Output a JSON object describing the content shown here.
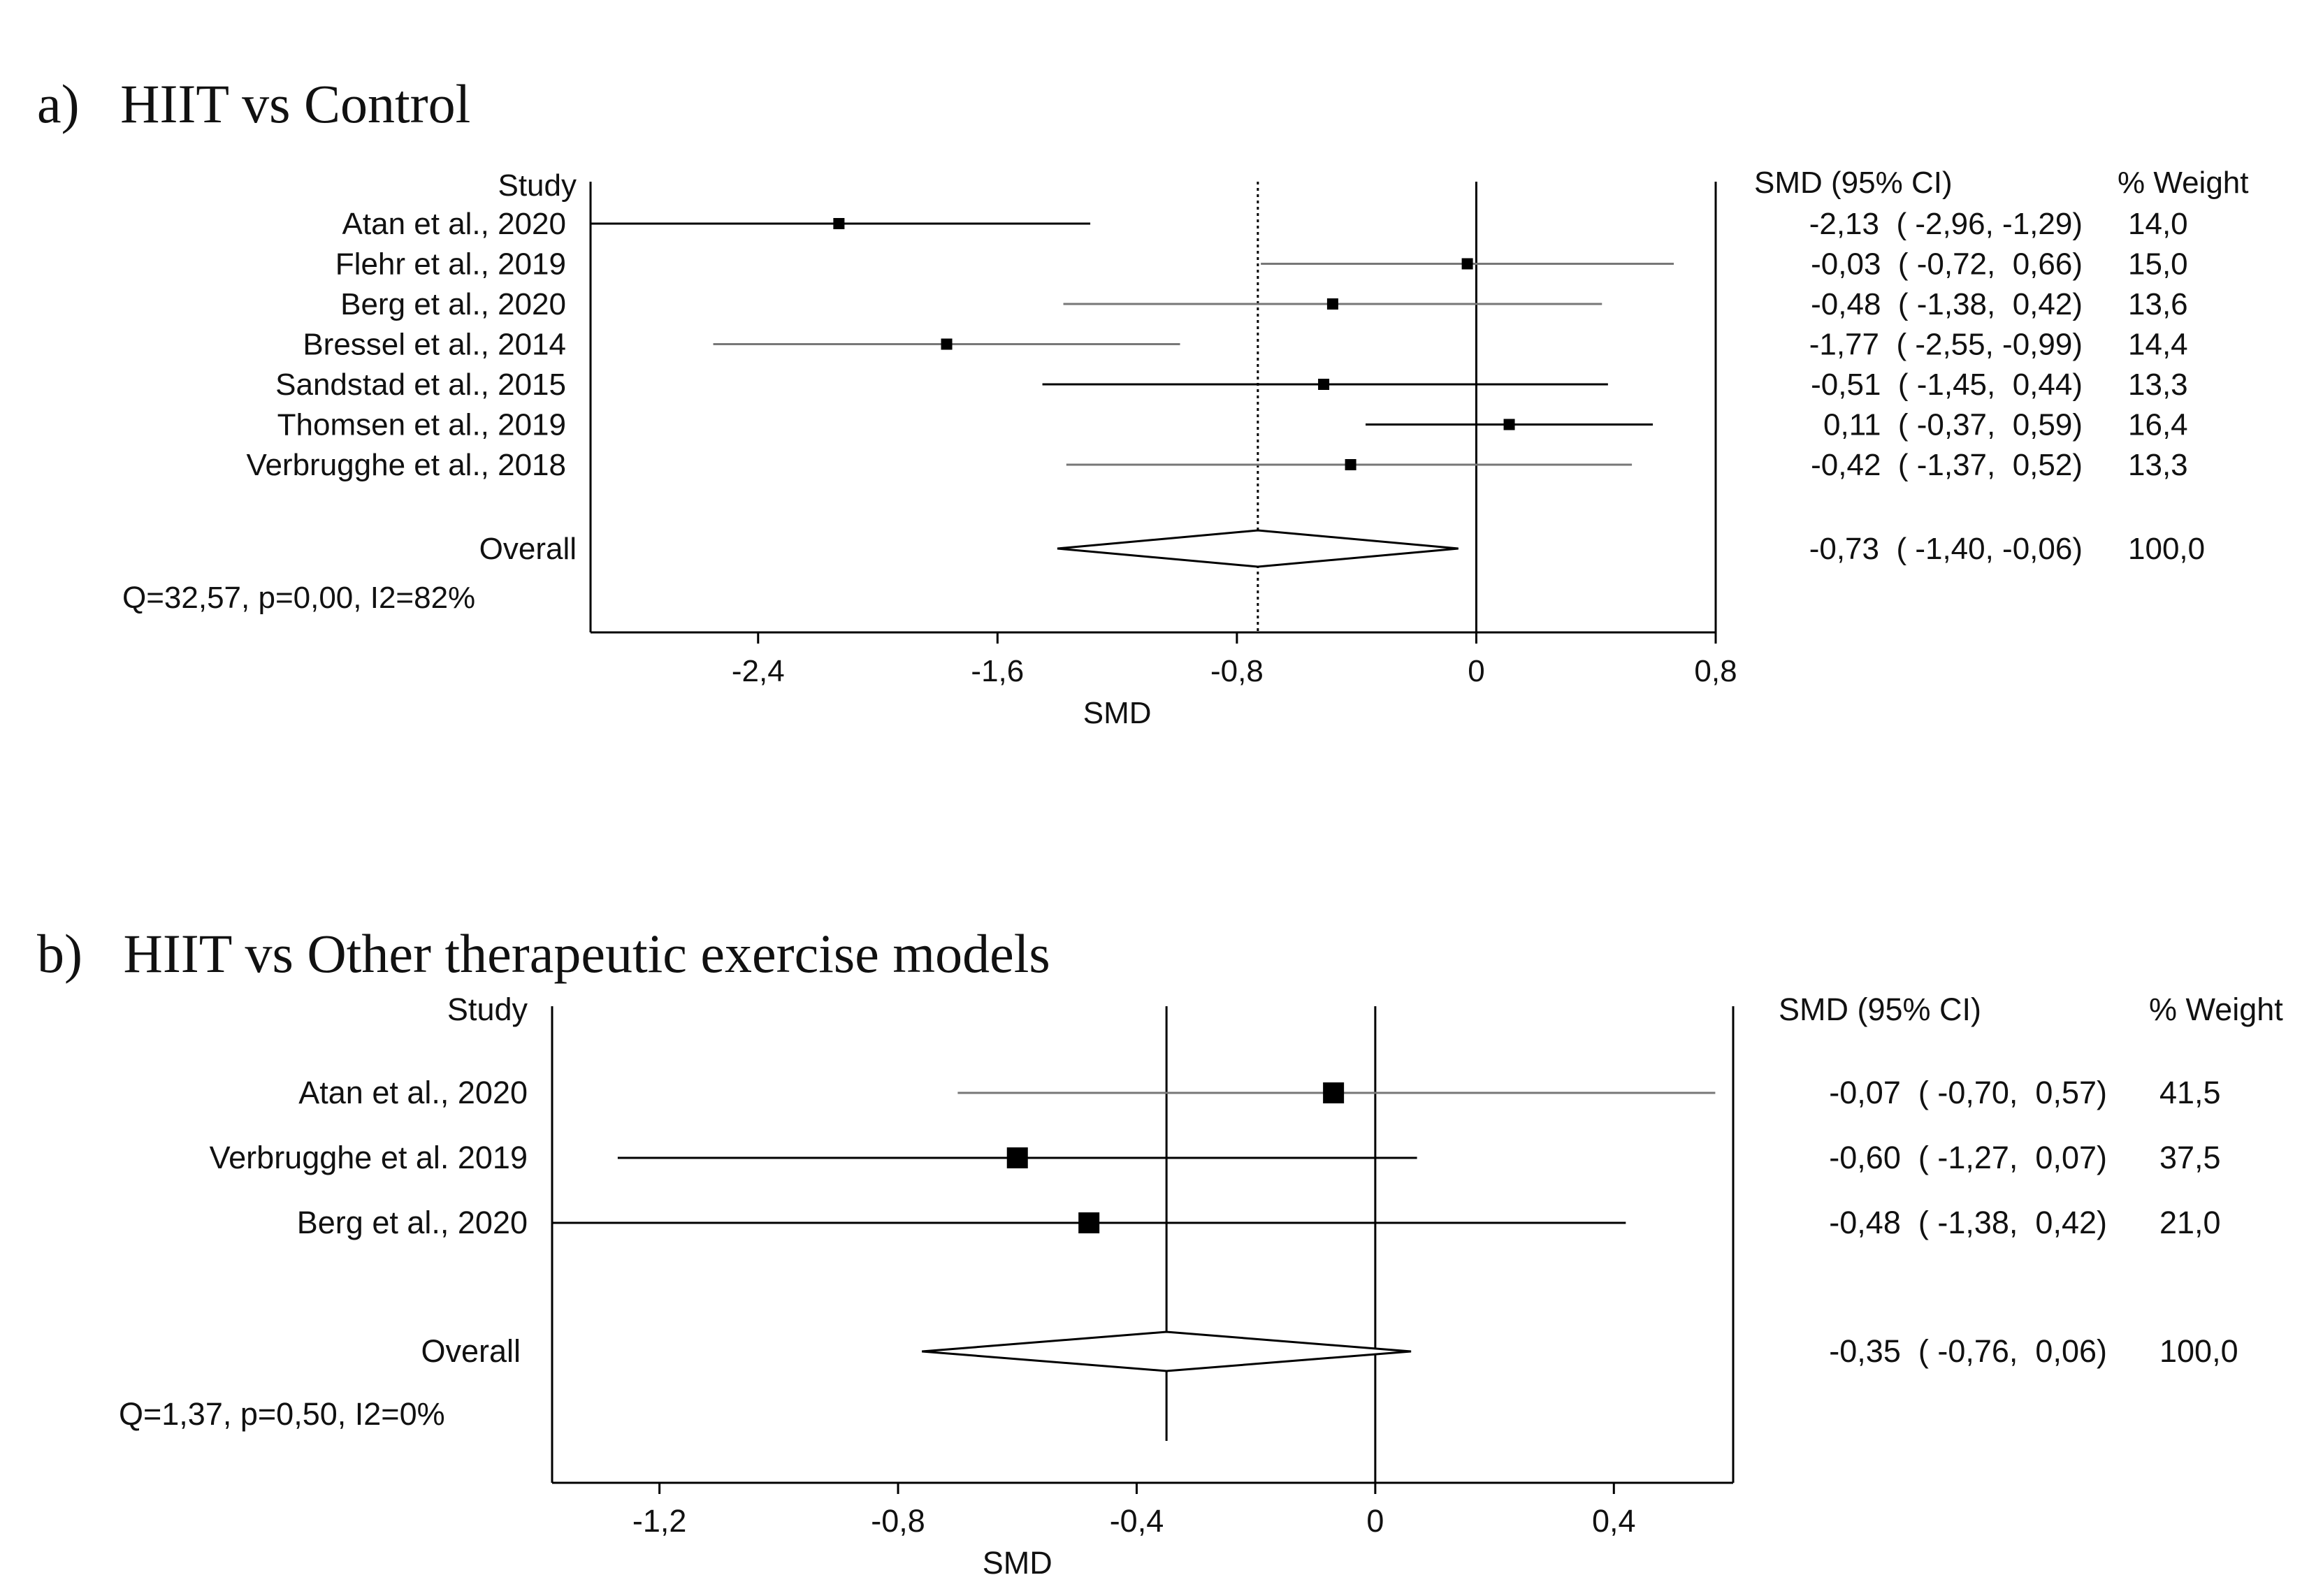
{
  "panels": [
    {
      "label": "a)",
      "title": "HIIT vs Control",
      "headers": {
        "study": "Study",
        "ci": "SMD (95% CI)",
        "weight": "% Weight"
      },
      "xlabel": "SMD",
      "heterogeneity": "Q=32,57, p=0,00, I2=82%"
    },
    {
      "label": "b)",
      "title": "HIIT vs Other therapeutic exercise models",
      "headers": {
        "study": "Study",
        "ci": "SMD (95% CI)",
        "weight": "% Weight"
      },
      "xlabel": "SMD",
      "heterogeneity": "Q=1,37, p=0,50, I2=0%"
    }
  ],
  "chart_data": [
    {
      "type": "scatter",
      "subtype": "forest",
      "title": "HIIT vs Control",
      "xlabel": "SMD",
      "xlim": [
        -2.96,
        0.8
      ],
      "xticks": [
        -2.4,
        -1.6,
        -0.8,
        0,
        0.8
      ],
      "xtick_labels": [
        "-2,4",
        "-1,6",
        "-0,8",
        "0",
        "0,8"
      ],
      "studies": [
        {
          "name": "Atan et al., 2020",
          "smd": -2.13,
          "lower": -2.96,
          "upper": -1.29,
          "weight": 14.0,
          "ci_text": "-2,13  ( -2,96, -1,29)",
          "weight_text": "14,0"
        },
        {
          "name": "Flehr et al., 2019",
          "smd": -0.03,
          "lower": -0.72,
          "upper": 0.66,
          "weight": 15.0,
          "ci_text": "-0,03  ( -0,72,  0,66)",
          "weight_text": "15,0"
        },
        {
          "name": "Berg et al., 2020",
          "smd": -0.48,
          "lower": -1.38,
          "upper": 0.42,
          "weight": 13.6,
          "ci_text": "-0,48  ( -1,38,  0,42)",
          "weight_text": "13,6"
        },
        {
          "name": "Bressel et al., 2014",
          "smd": -1.77,
          "lower": -2.55,
          "upper": -0.99,
          "weight": 14.4,
          "ci_text": "-1,77  ( -2,55, -0,99)",
          "weight_text": "14,4"
        },
        {
          "name": "Sandstad et al., 2015",
          "smd": -0.51,
          "lower": -1.45,
          "upper": 0.44,
          "weight": 13.3,
          "ci_text": "-0,51  ( -1,45,  0,44)",
          "weight_text": "13,3"
        },
        {
          "name": "Thomsen et al., 2019",
          "smd": 0.11,
          "lower": -0.37,
          "upper": 0.59,
          "weight": 16.4,
          "ci_text": " 0,11  ( -0,37,  0,59)",
          "weight_text": "16,4"
        },
        {
          "name": "Verbrugghe et al., 2018",
          "smd": -0.42,
          "lower": -1.37,
          "upper": 0.52,
          "weight": 13.3,
          "ci_text": "-0,42  ( -1,37,  0,52)",
          "weight_text": "13,3"
        }
      ],
      "overall": {
        "name": "Overall",
        "smd": -0.73,
        "lower": -1.4,
        "upper": -0.06,
        "weight": 100.0,
        "ci_text": "-0,73  ( -1,40, -0,06)",
        "weight_text": "100,0"
      },
      "heterogeneity": "Q=32,57, p=0,00, I2=82%"
    },
    {
      "type": "scatter",
      "subtype": "forest",
      "title": "HIIT vs Other therapeutic exercise models",
      "xlabel": "SMD",
      "xlim": [
        -1.38,
        0.6
      ],
      "xticks": [
        -1.2,
        -0.8,
        -0.4,
        0,
        0.4
      ],
      "xtick_labels": [
        "-1,2",
        "-0,8",
        "-0,4",
        "0",
        "0,4"
      ],
      "studies": [
        {
          "name": "Atan et al., 2020",
          "smd": -0.07,
          "lower": -0.7,
          "upper": 0.57,
          "weight": 41.5,
          "ci_text": "-0,07  ( -0,70,  0,57)",
          "weight_text": "41,5"
        },
        {
          "name": "Verbrugghe et al. 2019",
          "smd": -0.6,
          "lower": -1.27,
          "upper": 0.07,
          "weight": 37.5,
          "ci_text": "-0,60  ( -1,27,  0,07)",
          "weight_text": "37,5"
        },
        {
          "name": "Berg et al., 2020",
          "smd": -0.48,
          "lower": -1.38,
          "upper": 0.42,
          "weight": 21.0,
          "ci_text": "-0,48  ( -1,38,  0,42)",
          "weight_text": "21,0"
        }
      ],
      "overall": {
        "name": "Overall",
        "smd": -0.35,
        "lower": -0.76,
        "upper": 0.06,
        "weight": 100.0,
        "ci_text": "-0,35  ( -0,76,  0,06)",
        "weight_text": "100,0"
      },
      "heterogeneity": "Q=1,37, p=0,50, I2=0%"
    }
  ]
}
